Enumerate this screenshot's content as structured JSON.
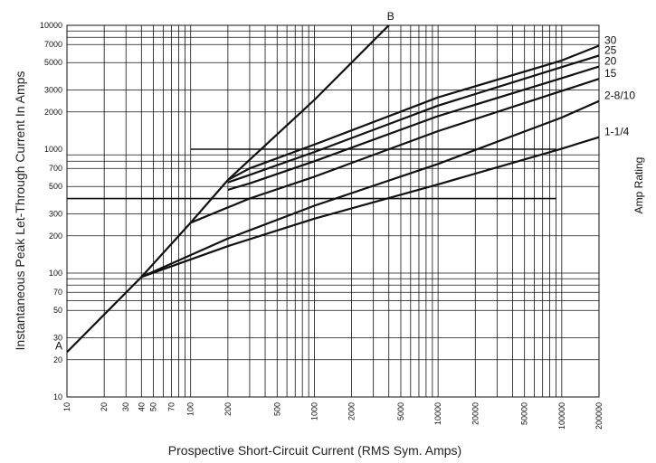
{
  "chart_data": {
    "type": "line",
    "x_scale": "log",
    "y_scale": "log",
    "xlim": [
      10,
      200000
    ],
    "ylim": [
      10,
      10000
    ],
    "xlabel": "Prospective Short-Circuit Current (RMS Sym. Amps)",
    "ylabel": "Instantaneous Peak Let-Through Current In Amps",
    "side_label": "Amp Rating",
    "x_tick_labels": [
      {
        "value": 10,
        "label": "10"
      },
      {
        "value": 20,
        "label": "20"
      },
      {
        "value": 30,
        "label": "30"
      },
      {
        "value": 40,
        "label": "40"
      },
      {
        "value": 50,
        "label": "50"
      },
      {
        "value": 70,
        "label": "70"
      },
      {
        "value": 100,
        "label": "100"
      },
      {
        "value": 200,
        "label": "200"
      },
      {
        "value": 500,
        "label": "500"
      },
      {
        "value": 1000,
        "label": "1000"
      },
      {
        "value": 2000,
        "label": "2000"
      },
      {
        "value": 5000,
        "label": "5000"
      },
      {
        "value": 10000,
        "label": "10000"
      },
      {
        "value": 20000,
        "label": "20000"
      },
      {
        "value": 50000,
        "label": "50000"
      },
      {
        "value": 100000,
        "label": "100000"
      },
      {
        "value": 200000,
        "label": "200000"
      }
    ],
    "y_tick_labels": [
      {
        "value": 10,
        "label": "10"
      },
      {
        "value": 20,
        "label": "20"
      },
      {
        "value": 30,
        "label": "30"
      },
      {
        "value": 50,
        "label": "50"
      },
      {
        "value": 70,
        "label": "70"
      },
      {
        "value": 100,
        "label": "100"
      },
      {
        "value": 200,
        "label": "200"
      },
      {
        "value": 300,
        "label": "300"
      },
      {
        "value": 500,
        "label": "500"
      },
      {
        "value": 700,
        "label": "700"
      },
      {
        "value": 1000,
        "label": "1000"
      },
      {
        "value": 2000,
        "label": "2000"
      },
      {
        "value": 3000,
        "label": "3000"
      },
      {
        "value": 5000,
        "label": "5000"
      },
      {
        "value": 7000,
        "label": "7000"
      },
      {
        "value": 10000,
        "label": "10000"
      }
    ],
    "vertical_gridlines": [
      10,
      20,
      30,
      40,
      50,
      60,
      70,
      80,
      90,
      100,
      200,
      300,
      400,
      500,
      600,
      700,
      800,
      900,
      1000,
      2000,
      3000,
      4000,
      5000,
      6000,
      7000,
      8000,
      9000,
      10000,
      20000,
      30000,
      40000,
      50000,
      60000,
      70000,
      80000,
      90000,
      100000,
      200000
    ],
    "horizontal_gridlines": [
      {
        "y": 10
      },
      {
        "y": 20
      },
      {
        "y": 30
      },
      {
        "y": 50
      },
      {
        "y": 60
      },
      {
        "y": 70
      },
      {
        "y": 80
      },
      {
        "y": 90
      },
      {
        "y": 100
      },
      {
        "y": 200
      },
      {
        "y": 300
      },
      {
        "y": 400,
        "bold": true,
        "x_end": 90000
      },
      {
        "y": 500
      },
      {
        "y": 700
      },
      {
        "y": 800
      },
      {
        "y": 900
      },
      {
        "y": 1000,
        "bold": true,
        "x_start": 100,
        "x_end": 90000
      },
      {
        "y": 2000
      },
      {
        "y": 3000
      },
      {
        "y": 5000
      },
      {
        "y": 7000
      },
      {
        "y": 8000
      },
      {
        "y": 9000
      },
      {
        "y": 10000
      }
    ],
    "series": [
      {
        "name": "A–B",
        "points": [
          [
            10,
            23
          ],
          [
            40,
            93
          ],
          [
            100,
            255
          ],
          [
            200,
            565
          ],
          [
            1000,
            2500
          ],
          [
            4000,
            10000
          ]
        ]
      },
      {
        "name": "30",
        "points": [
          [
            200,
            565
          ],
          [
            300,
            700
          ],
          [
            1000,
            1090
          ],
          [
            10000,
            2620
          ],
          [
            100000,
            5200
          ],
          [
            200000,
            6850
          ]
        ]
      },
      {
        "name": "25",
        "points": [
          [
            200,
            540
          ],
          [
            300,
            620
          ],
          [
            1000,
            950
          ],
          [
            10000,
            2250
          ],
          [
            100000,
            4600
          ],
          [
            200000,
            5700
          ]
        ]
      },
      {
        "name": "20",
        "points": [
          [
            200,
            470
          ],
          [
            300,
            530
          ],
          [
            1000,
            800
          ],
          [
            10000,
            1850
          ],
          [
            100000,
            3750
          ],
          [
            200000,
            4650
          ]
        ]
      },
      {
        "name": "15",
        "points": [
          [
            100,
            255
          ],
          [
            300,
            400
          ],
          [
            1000,
            600
          ],
          [
            10000,
            1400
          ],
          [
            100000,
            2950
          ],
          [
            200000,
            3700
          ]
        ]
      },
      {
        "name": "2-8/10",
        "points": [
          [
            40,
            93
          ],
          [
            200,
            190
          ],
          [
            1000,
            350
          ],
          [
            10000,
            760
          ],
          [
            100000,
            1800
          ],
          [
            200000,
            2450
          ]
        ]
      },
      {
        "name": "1-1/4",
        "points": [
          [
            40,
            93
          ],
          [
            200,
            165
          ],
          [
            1000,
            275
          ],
          [
            10000,
            520
          ],
          [
            100000,
            1010
          ],
          [
            200000,
            1250
          ]
        ]
      }
    ],
    "series_labels": [
      {
        "text": "30",
        "series": "30"
      },
      {
        "text": "25",
        "series": "25"
      },
      {
        "text": "20",
        "series": "20"
      },
      {
        "text": "15",
        "series": "15"
      },
      {
        "text": "2-8/10",
        "series": "2-8/10"
      },
      {
        "text": "1-1/4",
        "series": "1-1/4"
      }
    ],
    "point_labels": [
      {
        "text": "A",
        "x": 10,
        "y": 23
      },
      {
        "text": "B",
        "x": 4000,
        "y": 10000
      }
    ]
  }
}
